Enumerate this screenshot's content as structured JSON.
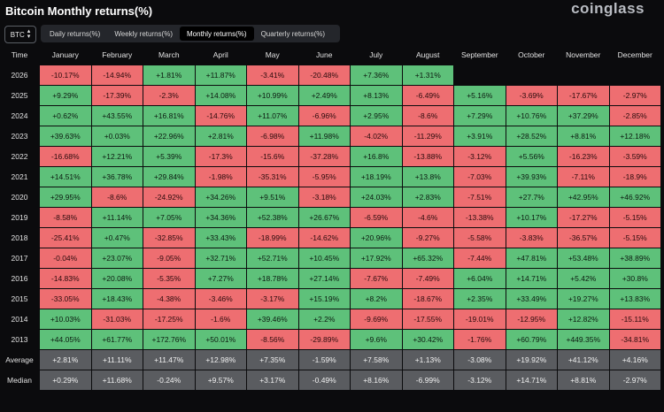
{
  "header": {
    "title": "Bitcoin Monthly returns(%)",
    "brand": "coinglass",
    "asset": "BTC"
  },
  "tabs": [
    {
      "label": "Daily returns(%)",
      "active": false
    },
    {
      "label": "Weekly returns(%)",
      "active": false
    },
    {
      "label": "Monthly returns(%)",
      "active": true
    },
    {
      "label": "Quarterly returns(%)",
      "active": false
    }
  ],
  "table": {
    "corner": "Time",
    "columns": [
      "January",
      "February",
      "March",
      "April",
      "May",
      "June",
      "July",
      "August",
      "September",
      "October",
      "November",
      "December"
    ],
    "rows": [
      {
        "label": "2026",
        "values": [
          "-10.17%",
          "-14.94%",
          "+1.81%",
          "+11.87%",
          "-3.41%",
          "-20.48%",
          "+7.36%",
          "+1.31%",
          "",
          "",
          "",
          ""
        ]
      },
      {
        "label": "2025",
        "values": [
          "+9.29%",
          "-17.39%",
          "-2.3%",
          "+14.08%",
          "+10.99%",
          "+2.49%",
          "+8.13%",
          "-6.49%",
          "+5.16%",
          "-3.69%",
          "-17.67%",
          "-2.97%"
        ]
      },
      {
        "label": "2024",
        "values": [
          "+0.62%",
          "+43.55%",
          "+16.81%",
          "-14.76%",
          "+11.07%",
          "-6.96%",
          "+2.95%",
          "-8.6%",
          "+7.29%",
          "+10.76%",
          "+37.29%",
          "-2.85%"
        ]
      },
      {
        "label": "2023",
        "values": [
          "+39.63%",
          "+0.03%",
          "+22.96%",
          "+2.81%",
          "-6.98%",
          "+11.98%",
          "-4.02%",
          "-11.29%",
          "+3.91%",
          "+28.52%",
          "+8.81%",
          "+12.18%"
        ]
      },
      {
        "label": "2022",
        "values": [
          "-16.68%",
          "+12.21%",
          "+5.39%",
          "-17.3%",
          "-15.6%",
          "-37.28%",
          "+16.8%",
          "-13.88%",
          "-3.12%",
          "+5.56%",
          "-16.23%",
          "-3.59%"
        ]
      },
      {
        "label": "2021",
        "values": [
          "+14.51%",
          "+36.78%",
          "+29.84%",
          "-1.98%",
          "-35.31%",
          "-5.95%",
          "+18.19%",
          "+13.8%",
          "-7.03%",
          "+39.93%",
          "-7.11%",
          "-18.9%"
        ]
      },
      {
        "label": "2020",
        "values": [
          "+29.95%",
          "-8.6%",
          "-24.92%",
          "+34.26%",
          "+9.51%",
          "-3.18%",
          "+24.03%",
          "+2.83%",
          "-7.51%",
          "+27.7%",
          "+42.95%",
          "+46.92%"
        ]
      },
      {
        "label": "2019",
        "values": [
          "-8.58%",
          "+11.14%",
          "+7.05%",
          "+34.36%",
          "+52.38%",
          "+26.67%",
          "-6.59%",
          "-4.6%",
          "-13.38%",
          "+10.17%",
          "-17.27%",
          "-5.15%"
        ]
      },
      {
        "label": "2018",
        "values": [
          "-25.41%",
          "+0.47%",
          "-32.85%",
          "+33.43%",
          "-18.99%",
          "-14.62%",
          "+20.96%",
          "-9.27%",
          "-5.58%",
          "-3.83%",
          "-36.57%",
          "-5.15%"
        ]
      },
      {
        "label": "2017",
        "values": [
          "-0.04%",
          "+23.07%",
          "-9.05%",
          "+32.71%",
          "+52.71%",
          "+10.45%",
          "+17.92%",
          "+65.32%",
          "-7.44%",
          "+47.81%",
          "+53.48%",
          "+38.89%"
        ]
      },
      {
        "label": "2016",
        "values": [
          "-14.83%",
          "+20.08%",
          "-5.35%",
          "+7.27%",
          "+18.78%",
          "+27.14%",
          "-7.67%",
          "-7.49%",
          "+6.04%",
          "+14.71%",
          "+5.42%",
          "+30.8%"
        ]
      },
      {
        "label": "2015",
        "values": [
          "-33.05%",
          "+18.43%",
          "-4.38%",
          "-3.46%",
          "-3.17%",
          "+15.19%",
          "+8.2%",
          "-18.67%",
          "+2.35%",
          "+33.49%",
          "+19.27%",
          "+13.83%"
        ]
      },
      {
        "label": "2014",
        "values": [
          "+10.03%",
          "-31.03%",
          "-17.25%",
          "-1.6%",
          "+39.46%",
          "+2.2%",
          "-9.69%",
          "-17.55%",
          "-19.01%",
          "-12.95%",
          "+12.82%",
          "-15.11%"
        ]
      },
      {
        "label": "2013",
        "values": [
          "+44.05%",
          "+61.77%",
          "+172.76%",
          "+50.01%",
          "-8.56%",
          "-29.89%",
          "+9.6%",
          "+30.42%",
          "-1.76%",
          "+60.79%",
          "+449.35%",
          "-34.81%"
        ]
      }
    ],
    "summary": [
      {
        "label": "Average",
        "values": [
          "+2.81%",
          "+11.11%",
          "+11.47%",
          "+12.98%",
          "+7.35%",
          "-1.59%",
          "+7.58%",
          "+1.13%",
          "-3.08%",
          "+19.92%",
          "+41.12%",
          "+4.16%"
        ]
      },
      {
        "label": "Median",
        "values": [
          "+0.29%",
          "+11.68%",
          "-0.24%",
          "+9.57%",
          "+3.17%",
          "-0.49%",
          "+8.16%",
          "-6.99%",
          "-3.12%",
          "+14.71%",
          "+8.81%",
          "-2.97%"
        ]
      }
    ]
  },
  "colors": {
    "positive": "#5ec17a",
    "negative": "#ee6e71",
    "summary": "#5a5c60",
    "background": "#0b0b0d"
  }
}
